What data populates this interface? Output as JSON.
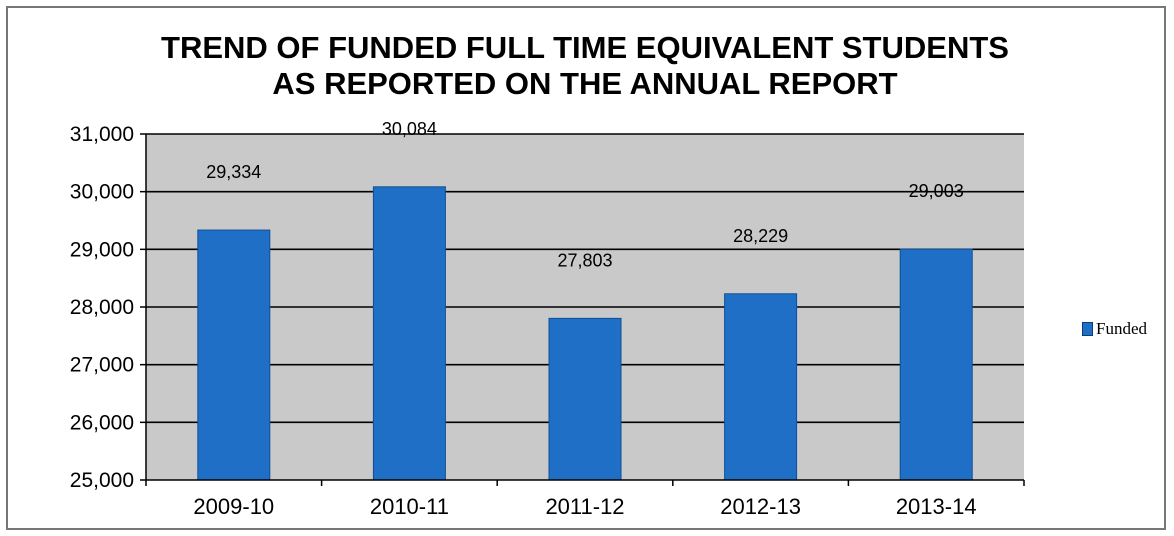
{
  "chart_data": {
    "type": "bar",
    "title": [
      "TREND OF FUNDED FULL TIME EQUIVALENT STUDENTS",
      "AS REPORTED ON THE ANNUAL REPORT"
    ],
    "categories": [
      "2009-10",
      "2010-11",
      "2011-12",
      "2012-13",
      "2013-14"
    ],
    "series": [
      {
        "name": "Funded",
        "values": [
          29334,
          30084,
          27803,
          28229,
          29003
        ],
        "color": "#1f6fc6"
      }
    ],
    "data_labels": [
      "29,334",
      "30,084",
      "27,803",
      "28,229",
      "29,003"
    ],
    "y_ticks": [
      25000,
      26000,
      27000,
      28000,
      29000,
      30000,
      31000
    ],
    "y_tick_labels": [
      "25,000",
      "26,000",
      "27,000",
      "28,000",
      "29,000",
      "30,000",
      "31,000"
    ],
    "ylim": [
      25000,
      31000
    ],
    "grid": true,
    "plot_background": "#c9c9c9",
    "legend_position": "right"
  }
}
